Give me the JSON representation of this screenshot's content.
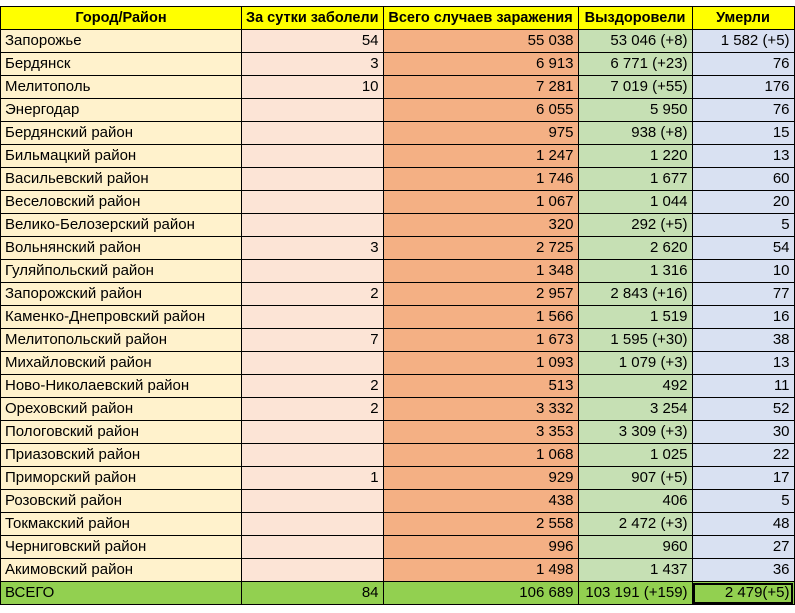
{
  "table": {
    "headers": {
      "city": "Город/Район",
      "daily": "За сутки заболели",
      "total": "Всего случаев заражения",
      "recovered": "Выздоровели",
      "died": "Умерли"
    },
    "rows": [
      {
        "city": "Запорожье",
        "daily": "54",
        "total": "55 038",
        "recovered": "53 046 (+8)",
        "died": "1 582 (+5)"
      },
      {
        "city": "Бердянск",
        "daily": "3",
        "total": "6 913",
        "recovered": "6 771 (+23)",
        "died": "76"
      },
      {
        "city": "Мелитополь",
        "daily": "10",
        "total": "7 281",
        "recovered": "7 019 (+55)",
        "died": "176"
      },
      {
        "city": "Энергодар",
        "daily": "",
        "total": "6 055",
        "recovered": "5 950",
        "died": "76"
      },
      {
        "city": "Бердянский район",
        "daily": "",
        "total": "975",
        "recovered": "938 (+8)",
        "died": "15"
      },
      {
        "city": "Бильмацкий район",
        "daily": "",
        "total": "1 247",
        "recovered": "1 220",
        "died": "13"
      },
      {
        "city": "Васильевский район",
        "daily": "",
        "total": "1 746",
        "recovered": "1 677",
        "died": "60"
      },
      {
        "city": "Веселовский район",
        "daily": "",
        "total": "1 067",
        "recovered": "1 044",
        "died": "20"
      },
      {
        "city": "Велико-Белозерский район",
        "daily": "",
        "total": "320",
        "recovered": "292 (+5)",
        "died": "5"
      },
      {
        "city": "Вольнянский район",
        "daily": "3",
        "total": "2 725",
        "recovered": "2 620",
        "died": "54"
      },
      {
        "city": "Гуляйпольский район",
        "daily": "",
        "total": "1 348",
        "recovered": "1 316",
        "died": "10"
      },
      {
        "city": "Запорожский район",
        "daily": "2",
        "total": "2 957",
        "recovered": "2 843 (+16)",
        "died": "77"
      },
      {
        "city": "Каменко-Днепровский район",
        "daily": "",
        "total": "1 566",
        "recovered": "1 519",
        "died": "16"
      },
      {
        "city": "Мелитопольский район",
        "daily": "7",
        "total": "1 673",
        "recovered": "1 595 (+30)",
        "died": "38"
      },
      {
        "city": "Михайловский район",
        "daily": "",
        "total": "1 093",
        "recovered": "1 079 (+3)",
        "died": "13"
      },
      {
        "city": "Ново-Николаевский район",
        "daily": "2",
        "total": "513",
        "recovered": "492",
        "died": "11"
      },
      {
        "city": "Ореховский район",
        "daily": "2",
        "total": "3 332",
        "recovered": "3 254",
        "died": "52"
      },
      {
        "city": "Пологовский район",
        "daily": "",
        "total": "3 353",
        "recovered": "3 309 (+3)",
        "died": "30"
      },
      {
        "city": "Приазовский район",
        "daily": "",
        "total": "1 068",
        "recovered": "1 025",
        "died": "22"
      },
      {
        "city": "Приморский район",
        "daily": "1",
        "total": "929",
        "recovered": "907 (+5)",
        "died": "17"
      },
      {
        "city": "Розовский район",
        "daily": "",
        "total": "438",
        "recovered": "406",
        "died": "5"
      },
      {
        "city": "Токмакский район",
        "daily": "",
        "total": "2 558",
        "recovered": "2 472 (+3)",
        "died": "48"
      },
      {
        "city": "Черниговский район",
        "daily": "",
        "total": "996",
        "recovered": "960",
        "died": "27"
      },
      {
        "city": "Акимовский район",
        "daily": "",
        "total": "1 498",
        "recovered": "1 437",
        "died": "36"
      }
    ],
    "total": {
      "city": "ВСЕГО",
      "daily": "84",
      "total": "106 689",
      "recovered": "103 191 (+159)",
      "died": "2 479(+5)"
    }
  },
  "colors": {
    "header_bg": "#ffff00",
    "city_bg": "#fff2cc",
    "daily_bg": "#fce4d6",
    "total_bg": "#f4b084",
    "recovered_bg": "#c6e0b4",
    "died_bg": "#d9e1f2",
    "total_row_bg": "#92d050"
  }
}
